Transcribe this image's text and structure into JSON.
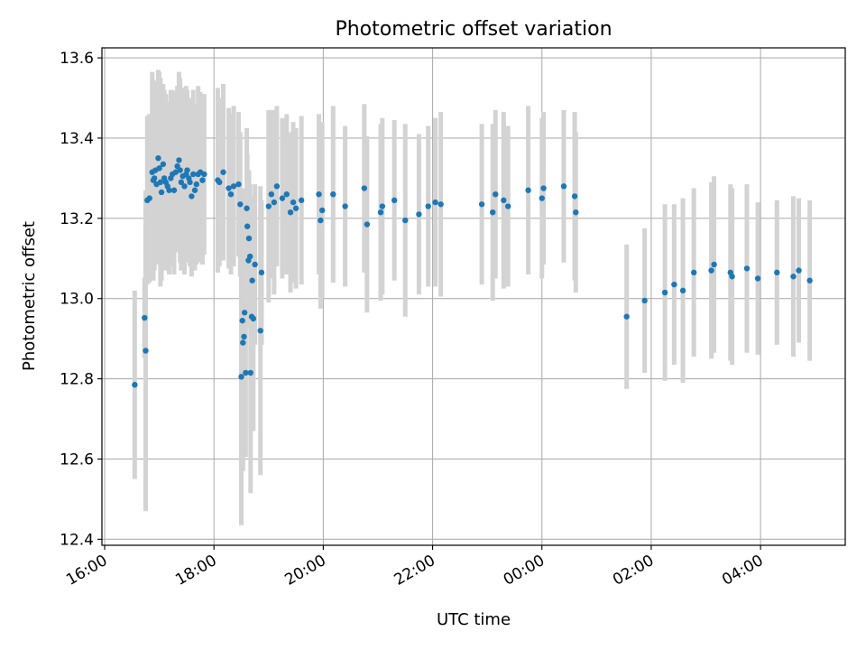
{
  "chart_data": {
    "type": "scatter",
    "title": "Photometric offset variation",
    "xlabel": "UTC time",
    "ylabel": "Photometric offset",
    "x_unit": "hours",
    "xlim": [
      15.95,
      29.55
    ],
    "ylim": [
      12.385,
      13.625
    ],
    "xticks": [
      16,
      18,
      20,
      22,
      24,
      26,
      28
    ],
    "xtick_labels": [
      "16:00",
      "18:00",
      "20:00",
      "22:00",
      "00:00",
      "02:00",
      "04:00"
    ],
    "yticks": [
      12.4,
      12.6,
      12.8,
      13.0,
      13.2,
      13.4,
      13.6
    ],
    "ytick_labels": [
      "12.4",
      "12.6",
      "12.8",
      "13.0",
      "13.2",
      "13.4",
      "13.6"
    ],
    "grid": true,
    "legend": "none",
    "colors": {
      "marker": "#1f77b4",
      "errorbar": "#d3d3d3",
      "grid": "#b0b0b0"
    },
    "series": [
      {
        "points": [
          [
            16.55,
            12.785,
            0.235
          ],
          [
            16.73,
            12.952,
            0.1
          ],
          [
            16.75,
            12.87,
            0.4
          ],
          [
            16.78,
            13.245,
            0.21
          ],
          [
            16.82,
            13.25,
            0.21
          ],
          [
            16.87,
            13.315,
            0.25
          ],
          [
            16.89,
            13.295,
            0.25
          ],
          [
            16.91,
            13.3,
            0.23
          ],
          [
            16.93,
            13.32,
            0.22
          ],
          [
            16.95,
            13.285,
            0.2
          ],
          [
            16.98,
            13.35,
            0.22
          ],
          [
            17.0,
            13.325,
            0.24
          ],
          [
            17.02,
            13.29,
            0.26
          ],
          [
            17.04,
            13.265,
            0.22
          ],
          [
            17.07,
            13.335,
            0.2
          ],
          [
            17.09,
            13.3,
            0.22
          ],
          [
            17.12,
            13.29,
            0.22
          ],
          [
            17.15,
            13.28,
            0.21
          ],
          [
            17.18,
            13.27,
            0.21
          ],
          [
            17.21,
            13.3,
            0.22
          ],
          [
            17.24,
            13.31,
            0.21
          ],
          [
            17.27,
            13.27,
            0.21
          ],
          [
            17.3,
            13.315,
            0.2
          ],
          [
            17.33,
            13.33,
            0.2
          ],
          [
            17.36,
            13.345,
            0.22
          ],
          [
            17.38,
            13.32,
            0.23
          ],
          [
            17.4,
            13.29,
            0.22
          ],
          [
            17.43,
            13.305,
            0.22
          ],
          [
            17.46,
            13.28,
            0.22
          ],
          [
            17.49,
            13.31,
            0.22
          ],
          [
            17.51,
            13.32,
            0.2
          ],
          [
            17.54,
            13.3,
            0.2
          ],
          [
            17.56,
            13.29,
            0.21
          ],
          [
            17.59,
            13.255,
            0.2
          ],
          [
            17.62,
            13.31,
            0.21
          ],
          [
            17.65,
            13.27,
            0.2
          ],
          [
            17.68,
            13.285,
            0.2
          ],
          [
            17.71,
            13.31,
            0.22
          ],
          [
            17.75,
            13.315,
            0.2
          ],
          [
            17.79,
            13.295,
            0.21
          ],
          [
            17.82,
            13.31,
            0.2
          ],
          [
            18.07,
            13.295,
            0.23
          ],
          [
            18.1,
            13.29,
            0.21
          ],
          [
            18.17,
            13.315,
            0.22
          ],
          [
            18.27,
            13.275,
            0.2
          ],
          [
            18.31,
            13.26,
            0.2
          ],
          [
            18.36,
            13.28,
            0.2
          ],
          [
            18.45,
            13.285,
            0.18
          ],
          [
            18.48,
            13.235,
            0.18
          ],
          [
            18.5,
            12.805,
            0.37
          ],
          [
            18.52,
            12.945,
            0.33
          ],
          [
            18.53,
            12.89,
            0.32
          ],
          [
            18.55,
            12.905,
            0.26
          ],
          [
            18.56,
            12.965,
            0.28
          ],
          [
            18.58,
            12.815,
            0.21
          ],
          [
            18.6,
            13.225,
            0.2
          ],
          [
            18.61,
            13.18,
            0.18
          ],
          [
            18.63,
            13.095,
            0.17
          ],
          [
            18.64,
            13.15,
            0.17
          ],
          [
            18.66,
            13.105,
            0.18
          ],
          [
            18.67,
            12.815,
            0.3
          ],
          [
            18.69,
            12.955,
            0.23
          ],
          [
            18.7,
            13.045,
            0.21
          ],
          [
            18.72,
            12.95,
            0.28
          ],
          [
            18.75,
            13.085,
            0.2
          ],
          [
            18.85,
            12.92,
            0.36
          ],
          [
            18.87,
            13.065,
            0.18
          ],
          [
            19.0,
            13.23,
            0.24
          ],
          [
            19.05,
            13.26,
            0.21
          ],
          [
            19.1,
            13.24,
            0.23
          ],
          [
            19.15,
            13.28,
            0.2
          ],
          [
            19.25,
            13.25,
            0.2
          ],
          [
            19.33,
            13.26,
            0.2
          ],
          [
            19.4,
            13.215,
            0.2
          ],
          [
            19.45,
            13.24,
            0.2
          ],
          [
            19.5,
            13.225,
            0.2
          ],
          [
            19.6,
            13.245,
            0.21
          ],
          [
            19.92,
            13.26,
            0.2
          ],
          [
            19.95,
            13.195,
            0.22
          ],
          [
            19.98,
            13.22,
            0.22
          ],
          [
            20.18,
            13.26,
            0.22
          ],
          [
            20.4,
            13.23,
            0.2
          ],
          [
            20.75,
            13.275,
            0.21
          ],
          [
            20.8,
            13.185,
            0.22
          ],
          [
            21.05,
            13.215,
            0.22
          ],
          [
            21.08,
            13.23,
            0.22
          ],
          [
            21.3,
            13.245,
            0.2
          ],
          [
            21.5,
            13.195,
            0.24
          ],
          [
            21.75,
            13.21,
            0.2
          ],
          [
            21.92,
            13.23,
            0.2
          ],
          [
            22.05,
            13.24,
            0.21
          ],
          [
            22.15,
            13.235,
            0.23
          ],
          [
            22.9,
            13.235,
            0.2
          ],
          [
            23.1,
            13.215,
            0.22
          ],
          [
            23.15,
            13.26,
            0.21
          ],
          [
            23.3,
            13.245,
            0.22
          ],
          [
            23.38,
            13.23,
            0.2
          ],
          [
            23.75,
            13.27,
            0.21
          ],
          [
            24.0,
            13.25,
            0.2
          ],
          [
            24.03,
            13.275,
            0.19
          ],
          [
            24.4,
            13.28,
            0.19
          ],
          [
            24.6,
            13.255,
            0.21
          ],
          [
            24.62,
            13.215,
            0.2
          ],
          [
            25.55,
            12.955,
            0.18
          ],
          [
            25.88,
            12.995,
            0.18
          ],
          [
            26.25,
            13.015,
            0.22
          ],
          [
            26.42,
            13.035,
            0.2
          ],
          [
            26.58,
            13.02,
            0.23
          ],
          [
            26.78,
            13.065,
            0.21
          ],
          [
            27.1,
            13.07,
            0.22
          ],
          [
            27.15,
            13.085,
            0.22
          ],
          [
            27.45,
            13.065,
            0.22
          ],
          [
            27.48,
            13.055,
            0.22
          ],
          [
            27.75,
            13.075,
            0.21
          ],
          [
            27.95,
            13.05,
            0.19
          ],
          [
            28.3,
            13.065,
            0.18
          ],
          [
            28.6,
            13.055,
            0.2
          ],
          [
            28.7,
            13.07,
            0.18
          ],
          [
            28.9,
            13.045,
            0.2
          ]
        ]
      }
    ]
  }
}
